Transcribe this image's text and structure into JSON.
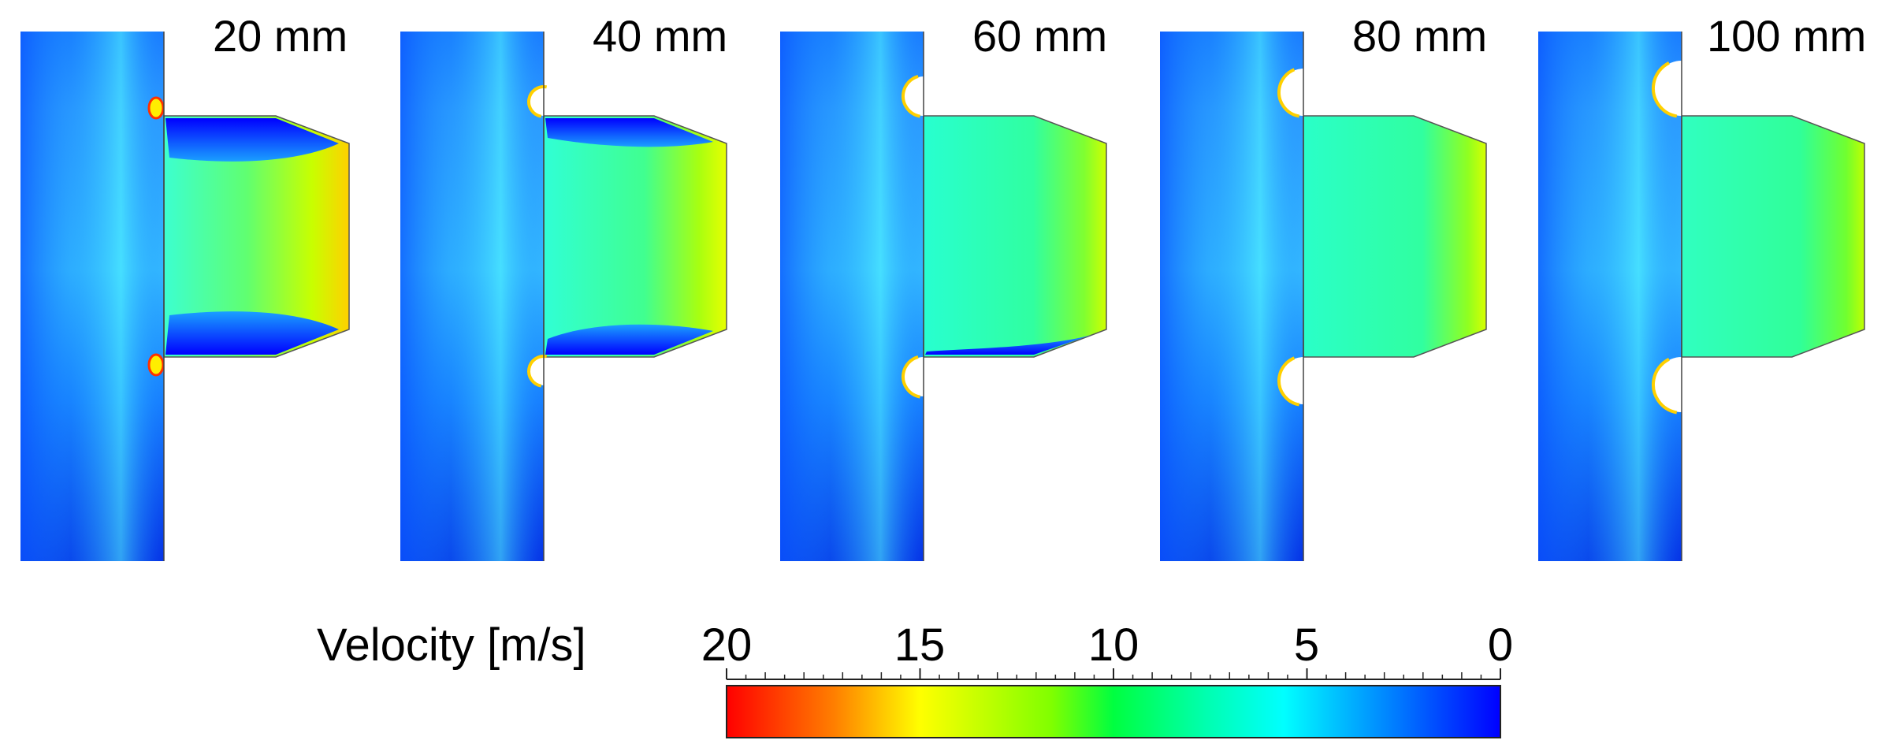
{
  "panels": [
    {
      "label": "20 mm",
      "gap_mm": 20
    },
    {
      "label": "40 mm",
      "gap_mm": 40
    },
    {
      "label": "60 mm",
      "gap_mm": 60
    },
    {
      "label": "80 mm",
      "gap_mm": 80
    },
    {
      "label": "100 mm",
      "gap_mm": 100
    }
  ],
  "colorbar": {
    "title": "Velocity [m/s]",
    "tick_labels": [
      "20",
      "15",
      "10",
      "5",
      "0"
    ],
    "min": 0,
    "max": 20,
    "unit": "m/s",
    "colors": [
      "#ff0000",
      "#ff8000",
      "#ffff00",
      "#80ff00",
      "#00ff80",
      "#00ffff",
      "#0080ff",
      "#0000ff"
    ]
  }
}
